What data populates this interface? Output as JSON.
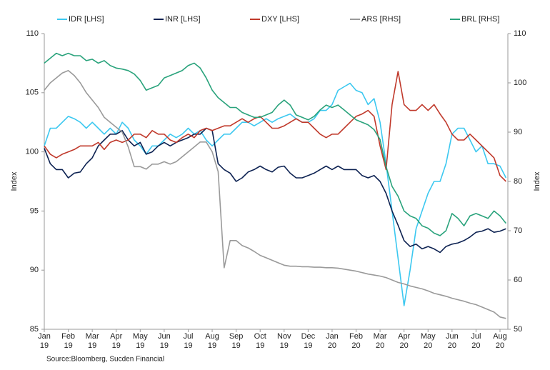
{
  "chart_data": {
    "type": "line",
    "source": "Source:Bloomberg, Sucden Financial",
    "y_label": "Index",
    "y2_label": "Index",
    "categories": [
      "Jan\n19",
      null,
      null,
      null,
      "Feb\n19",
      null,
      null,
      null,
      "Mar\n19",
      null,
      null,
      null,
      "Apr\n19",
      null,
      null,
      null,
      "May\n19",
      null,
      null,
      null,
      "Jun\n19",
      null,
      null,
      null,
      "Jul\n19",
      null,
      null,
      null,
      "Aug\n19",
      null,
      null,
      null,
      "Sep\n19",
      null,
      null,
      null,
      "Oct\n19",
      null,
      null,
      null,
      "Nov\n19",
      null,
      null,
      null,
      "Dec\n19",
      null,
      null,
      null,
      "Jan\n20",
      null,
      null,
      null,
      "Feb\n20",
      null,
      null,
      null,
      "Mar\n20",
      null,
      null,
      null,
      "Apr\n20",
      null,
      null,
      null,
      "May\n20",
      null,
      null,
      null,
      "Jun\n20",
      null,
      null,
      null,
      "Jul\n20",
      null,
      null,
      null,
      "Aug\n20",
      null
    ],
    "ylim": [
      85,
      110
    ],
    "yticks": [
      85,
      90,
      95,
      100,
      105,
      110
    ],
    "y2lim": [
      50,
      110
    ],
    "y2ticks": [
      50,
      60,
      70,
      80,
      90,
      100,
      110
    ],
    "grid": false,
    "legend": "top",
    "series": [
      {
        "name": "IDR [LHS]",
        "color": "#3cc8f0",
        "axis": "y",
        "values": [
          100.5,
          102,
          102,
          102.5,
          103,
          102.8,
          102.5,
          102,
          102.5,
          102,
          101.5,
          102,
          101.5,
          102.5,
          102,
          101,
          100.5,
          99.8,
          100.5,
          100.5,
          101,
          101.5,
          101.2,
          101.5,
          102,
          101.5,
          101.8,
          101,
          100.5,
          101,
          101.5,
          101.5,
          102,
          102.5,
          102.5,
          102.2,
          102.5,
          102.8,
          102.5,
          102.8,
          103,
          103.2,
          102.8,
          102.5,
          102.5,
          102.8,
          103.5,
          103.5,
          104,
          105.2,
          105.5,
          105.8,
          105.2,
          105,
          104,
          104.5,
          102.5,
          99,
          95,
          91,
          87,
          90,
          93.5,
          95,
          96.5,
          97.5,
          97.5,
          99,
          101.5,
          102,
          102,
          101,
          100,
          100.5,
          99,
          99,
          98.8,
          97.8
        ]
      },
      {
        "name": "INR [LHS]",
        "color": "#0d2252",
        "axis": "y",
        "values": [
          100.3,
          99,
          98.5,
          98.5,
          97.8,
          98.2,
          98.3,
          99,
          99.5,
          100.5,
          101,
          101.5,
          101.5,
          101.8,
          101,
          100.5,
          100.8,
          99.8,
          100,
          100.5,
          100.8,
          100.5,
          100.8,
          101,
          101.2,
          101.5,
          101.5,
          102,
          101.8,
          99,
          98.5,
          98.2,
          97.5,
          97.8,
          98.3,
          98.5,
          98.8,
          98.5,
          98.3,
          98.7,
          98.8,
          98.2,
          97.8,
          97.8,
          98,
          98.2,
          98.5,
          98.8,
          98.5,
          98.8,
          98.5,
          98.5,
          98.5,
          98,
          97.8,
          98,
          97.5,
          96.5,
          95,
          93.8,
          92.5,
          92,
          92.2,
          91.8,
          92,
          91.8,
          91.5,
          92,
          92.2,
          92.3,
          92.5,
          92.8,
          93.2,
          93.3,
          93.5,
          93.2,
          93.3,
          93.5
        ]
      },
      {
        "name": "DXY [LHS]",
        "color": "#c0392b",
        "axis": "y",
        "values": [
          100.5,
          99.8,
          99.5,
          99.8,
          100,
          100.2,
          100.5,
          100.5,
          100.5,
          100.8,
          100.2,
          100.8,
          101,
          100.8,
          101,
          101.5,
          101.5,
          101.2,
          101.8,
          101.5,
          101.5,
          101,
          100.8,
          101.2,
          101.5,
          101.2,
          101.8,
          102,
          101.8,
          102,
          102.2,
          102.2,
          102.5,
          102.8,
          102.5,
          102.8,
          103,
          102.5,
          102,
          102,
          102.2,
          102.5,
          102.8,
          102.5,
          102.5,
          102,
          101.5,
          101.2,
          101.5,
          101.5,
          102,
          102.5,
          103,
          103.2,
          103.5,
          103,
          100.5,
          98.5,
          104,
          106.8,
          104,
          103.5,
          103.5,
          104,
          103.5,
          104,
          103.2,
          102.5,
          101.5,
          101,
          101,
          101.5,
          101,
          100.5,
          100,
          99.5,
          98,
          97.5
        ]
      },
      {
        "name": "ARS [RHS]",
        "color": "#9a9a9a",
        "axis": "y2",
        "values": [
          98.5,
          100,
          101,
          102,
          102.5,
          101.5,
          100,
          98,
          96.5,
          95,
          93,
          92,
          91,
          90,
          87,
          83,
          83,
          82.5,
          83.5,
          83.5,
          84,
          83.5,
          84,
          85,
          86,
          87,
          88,
          88,
          86,
          82,
          62.5,
          68,
          68,
          67,
          66.5,
          65.8,
          65,
          64.5,
          64,
          63.5,
          63,
          62.8,
          62.8,
          62.7,
          62.7,
          62.6,
          62.6,
          62.5,
          62.5,
          62.4,
          62.2,
          62,
          61.8,
          61.5,
          61.2,
          61,
          60.8,
          60.5,
          60,
          59.5,
          59.2,
          58.8,
          58.5,
          58.2,
          57.8,
          57.3,
          57,
          56.7,
          56.3,
          56,
          55.7,
          55.3,
          55,
          54.5,
          54,
          53.5,
          52.5,
          52.2
        ]
      },
      {
        "name": "BRL [RHS]",
        "color": "#2aa37c",
        "axis": "y2",
        "values": [
          104,
          105,
          106,
          105.5,
          106,
          105.5,
          105.5,
          104.5,
          104.8,
          104,
          104.5,
          103.5,
          103,
          102.8,
          102.5,
          101.8,
          100.5,
          98.5,
          99,
          99.5,
          101,
          101.5,
          102,
          102.5,
          103.5,
          104,
          103,
          101,
          98.5,
          97,
          96,
          95,
          95,
          94,
          93.5,
          93,
          93,
          93.5,
          94,
          95.5,
          96.5,
          95.5,
          93.5,
          93,
          92.5,
          93.2,
          94.5,
          95.5,
          95,
          95.5,
          94.5,
          93.5,
          92.5,
          92,
          91.5,
          90.5,
          88.5,
          83,
          79,
          77,
          74,
          73,
          72.5,
          71,
          70.5,
          69.5,
          69,
          70,
          73.5,
          72.5,
          71,
          73,
          73.5,
          73,
          72.5,
          74,
          73,
          71.5
        ]
      }
    ]
  }
}
